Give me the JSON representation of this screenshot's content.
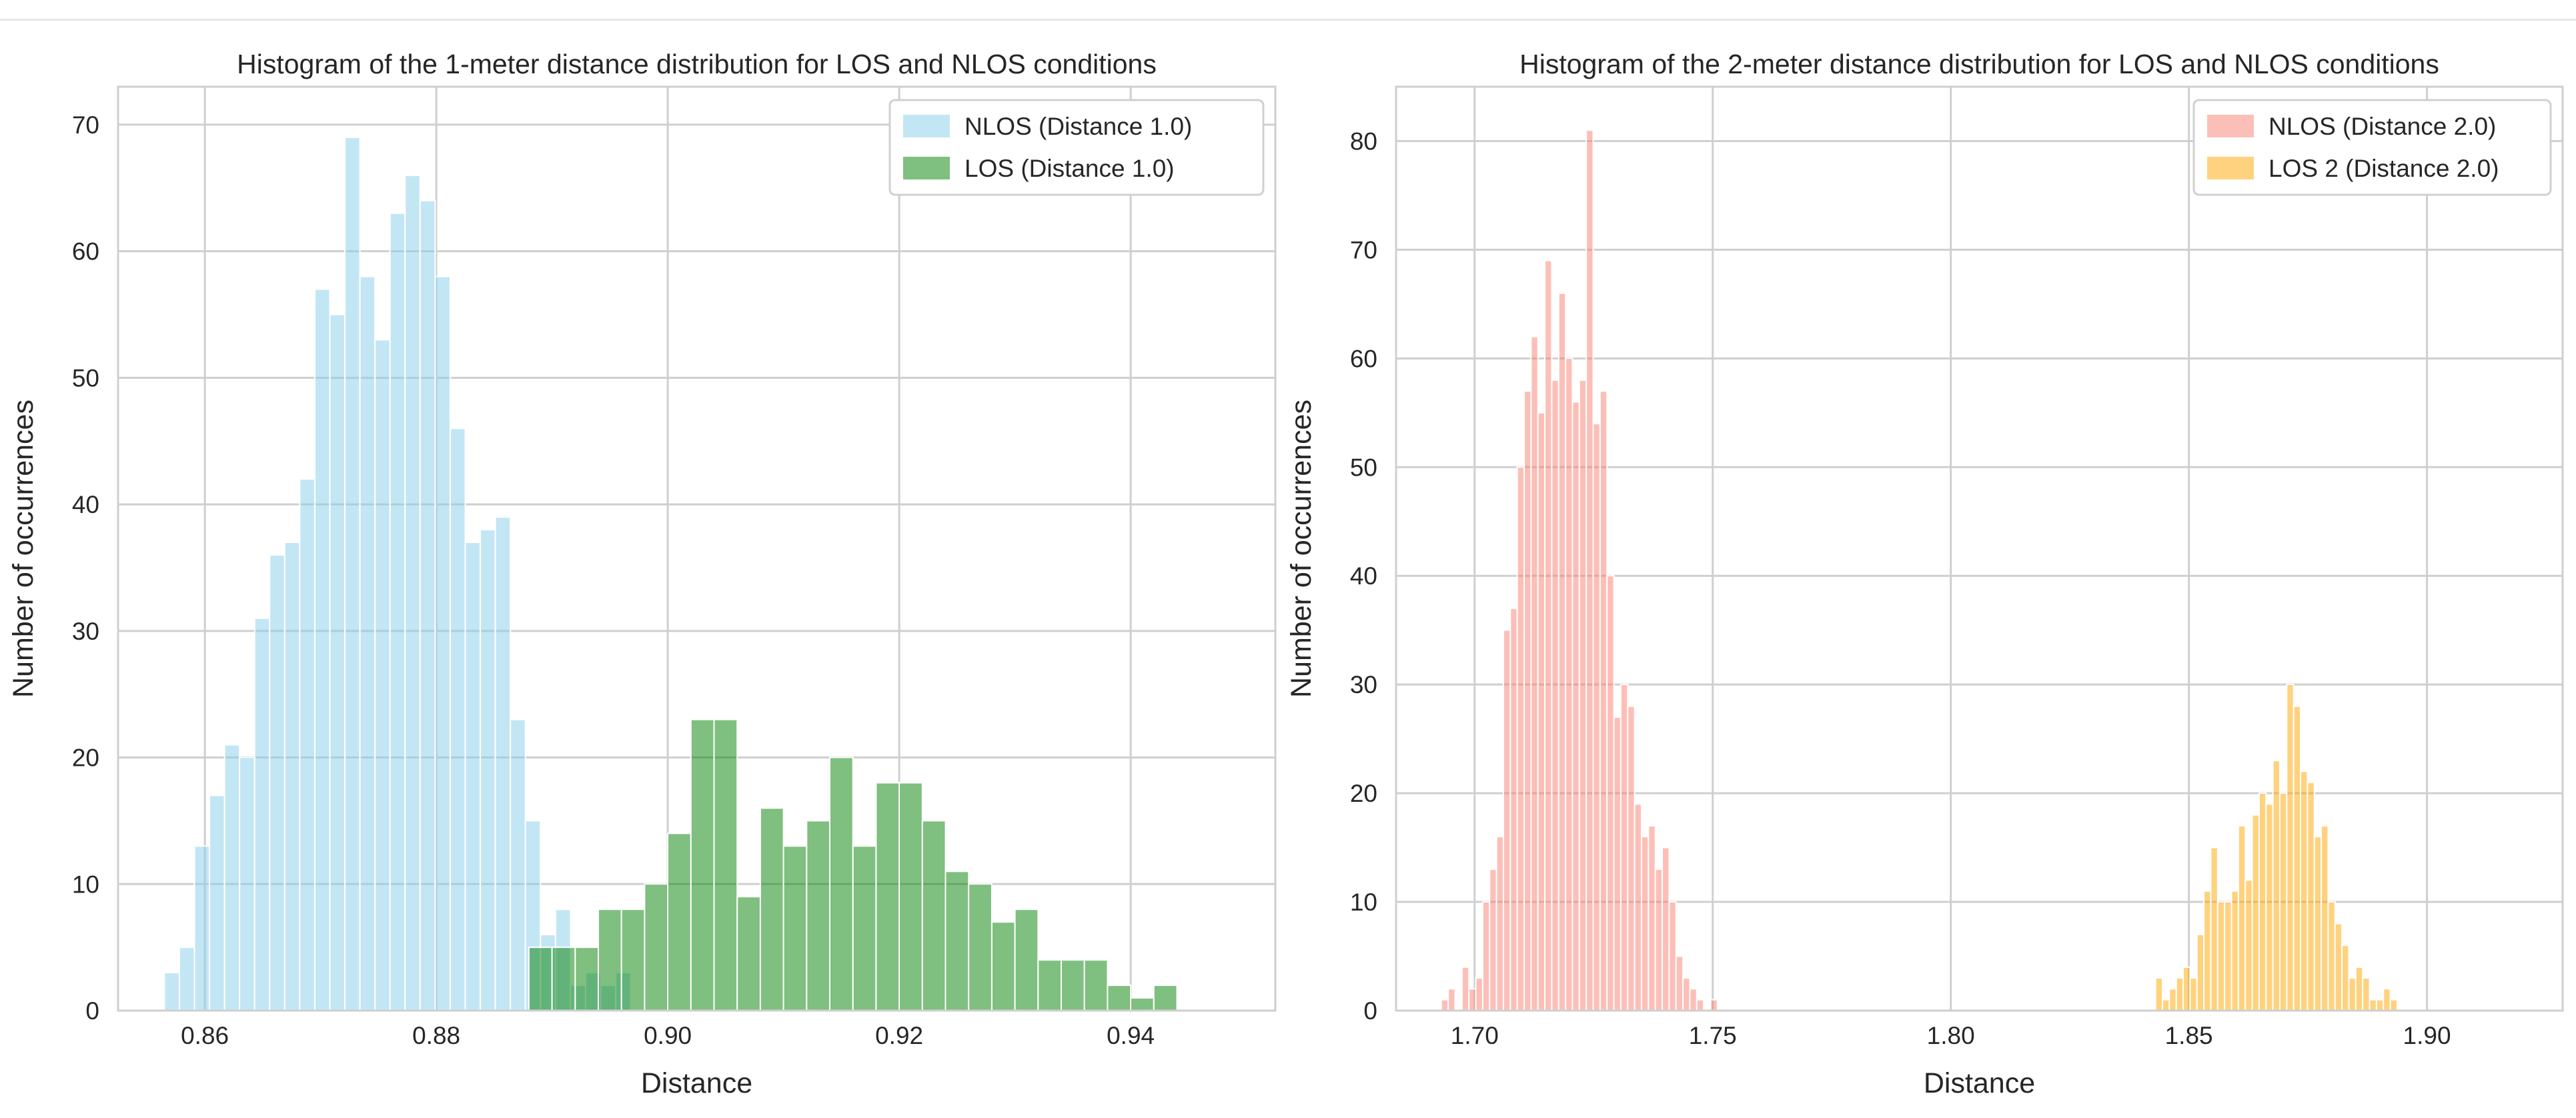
{
  "chart_data": [
    {
      "type": "histogram",
      "title": "Histogram of the 1-meter distance distribution for LOS and NLOS conditions",
      "xlabel": "Distance",
      "ylabel": "Number of occurrences",
      "xlim": [
        0.8525,
        0.9525
      ],
      "ylim": [
        0,
        73
      ],
      "xticks": [
        "0.86",
        "0.88",
        "0.90",
        "0.92",
        "0.94"
      ],
      "xtick_values": [
        0.86,
        0.88,
        0.9,
        0.92,
        0.94
      ],
      "yticks": [
        "0",
        "10",
        "20",
        "30",
        "40",
        "50",
        "60",
        "70"
      ],
      "ytick_values": [
        0,
        10,
        20,
        30,
        40,
        50,
        60,
        70
      ],
      "grid": true,
      "legend_position": "top-right",
      "series": [
        {
          "name": "NLOS (Distance 1.0)",
          "color": "#87ceeb",
          "opacity": 0.5,
          "bin_start": 0.8565,
          "bin_width": 0.0013,
          "counts": [
            3,
            5,
            13,
            17,
            21,
            20,
            31,
            36,
            37,
            42,
            57,
            55,
            69,
            58,
            53,
            63,
            66,
            64,
            58,
            46,
            37,
            38,
            39,
            23,
            15,
            6,
            8,
            2,
            3,
            2,
            3
          ]
        },
        {
          "name": "LOS (Distance 1.0)",
          "color": "#008000",
          "opacity": 0.5,
          "bin_start": 0.888,
          "bin_width": 0.002,
          "counts": [
            5,
            5,
            5,
            8,
            8,
            10,
            14,
            23,
            23,
            9,
            16,
            13,
            15,
            20,
            13,
            18,
            18,
            15,
            11,
            10,
            7,
            8,
            4,
            4,
            4,
            2,
            1,
            2
          ]
        }
      ]
    },
    {
      "type": "histogram",
      "title": "Histogram of the 2-meter distance distribution for LOS and NLOS conditions",
      "xlabel": "Distance",
      "ylabel": "Number of occurrences",
      "xlim": [
        1.6835,
        1.9285
      ],
      "ylim": [
        0,
        85
      ],
      "xticks": [
        "1.70",
        "1.75",
        "1.80",
        "1.85",
        "1.90"
      ],
      "xtick_values": [
        1.7,
        1.75,
        1.8,
        1.85,
        1.9
      ],
      "yticks": [
        "0",
        "10",
        "20",
        "30",
        "40",
        "50",
        "60",
        "70",
        "80"
      ],
      "ytick_values": [
        0,
        10,
        20,
        30,
        40,
        50,
        60,
        70,
        80
      ],
      "grid": true,
      "legend_position": "top-right",
      "series": [
        {
          "name": "NLOS (Distance 2.0)",
          "color": "#fa8072",
          "opacity": 0.5,
          "bin_start": 1.693,
          "bin_width": 0.00145,
          "counts": [
            1,
            2,
            0,
            4,
            2,
            3,
            10,
            13,
            16,
            35,
            37,
            50,
            57,
            62,
            55,
            69,
            58,
            66,
            60,
            56,
            58,
            81,
            54,
            57,
            40,
            27,
            30,
            28,
            19,
            16,
            17,
            13,
            15,
            10,
            5,
            3,
            2,
            1,
            0,
            1
          ]
        },
        {
          "name": "LOS 2 (Distance 2.0)",
          "color": "#ffa500",
          "opacity": 0.5,
          "bin_start": 1.843,
          "bin_width": 0.00145,
          "counts": [
            3,
            1,
            2,
            3,
            4,
            3,
            7,
            11,
            15,
            10,
            10,
            11,
            17,
            12,
            18,
            20,
            19,
            23,
            20,
            30,
            28,
            22,
            21,
            16,
            17,
            10,
            8,
            6,
            3,
            4,
            3,
            1,
            1,
            2,
            1
          ]
        }
      ]
    }
  ]
}
